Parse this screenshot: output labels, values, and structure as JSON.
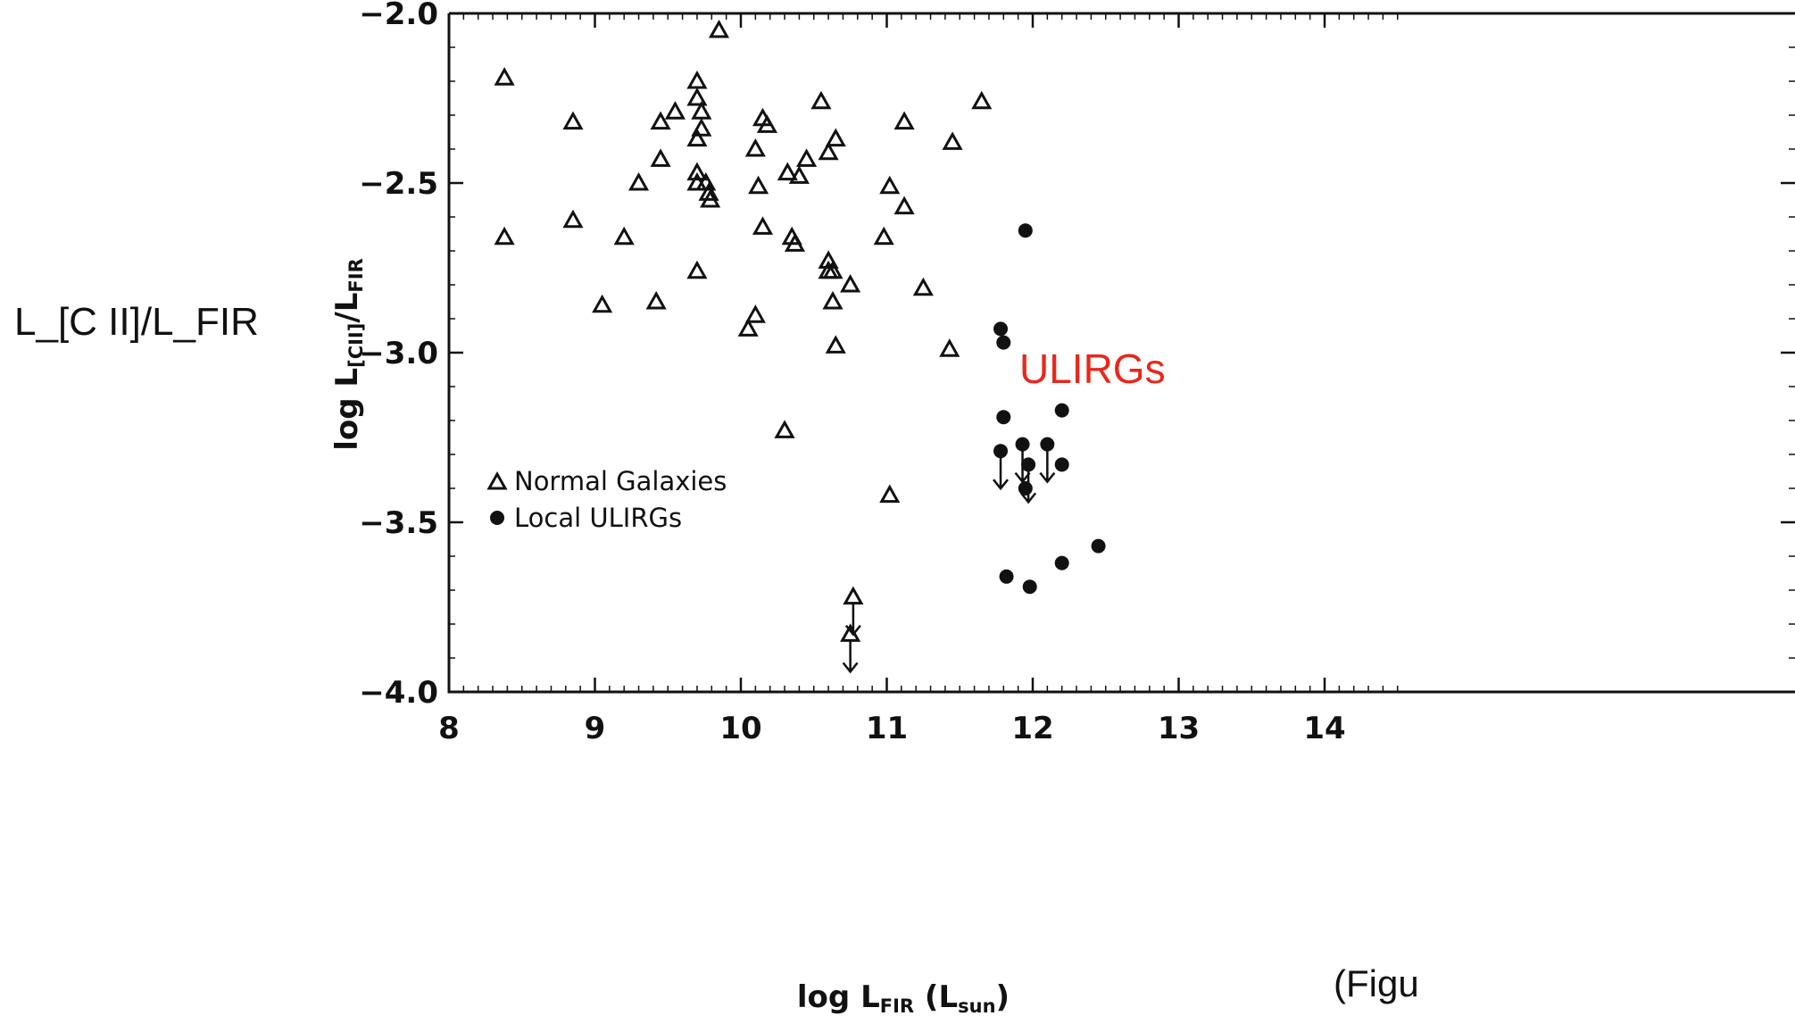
{
  "side_label": "L_[C II]/L_FIR",
  "annotation": "ULIRGs",
  "annotation_color": "#e8281c",
  "caption": "(Figu",
  "chart_data": {
    "type": "scatter",
    "x_axis": {
      "label_main": "log L",
      "label_sub": "FIR",
      "label_unit_open": " (L",
      "label_unit_sub": "sun",
      "label_close": ")",
      "range": [
        8.0,
        14.5
      ],
      "ticks": [
        8,
        9,
        10,
        11,
        12,
        13,
        14
      ],
      "tick_labels": [
        "8",
        "9",
        "10",
        "11",
        "12",
        "13",
        "14"
      ]
    },
    "y_axis": {
      "label_main": "log L",
      "label_sub": "[CII]",
      "label_mid": "/L",
      "label_sub2": "FIR",
      "range": [
        -4.0,
        -2.0
      ],
      "ticks": [
        -2.0,
        -2.5,
        -3.0,
        -3.5,
        -4.0
      ],
      "tick_labels": [
        "−2.0",
        "−2.5",
        "−3.0",
        "−3.5",
        "−4.0"
      ]
    },
    "legend": {
      "position": "lower-left",
      "entries": [
        {
          "label": "Normal Galaxies",
          "marker": "open-triangle"
        },
        {
          "label": "Local ULIRGs",
          "marker": "filled-circle"
        }
      ]
    },
    "series": [
      {
        "name": "Normal Galaxies",
        "marker": "open-triangle",
        "points": [
          [
            8.38,
            -2.19
          ],
          [
            8.38,
            -2.66
          ],
          [
            8.85,
            -2.32
          ],
          [
            8.85,
            -2.61
          ],
          [
            9.05,
            -2.86
          ],
          [
            9.2,
            -2.66
          ],
          [
            9.3,
            -2.5
          ],
          [
            9.42,
            -2.85
          ],
          [
            9.45,
            -2.43
          ],
          [
            9.45,
            -2.32
          ],
          [
            9.55,
            -2.29
          ],
          [
            9.7,
            -2.2
          ],
          [
            9.7,
            -2.25
          ],
          [
            9.73,
            -2.29
          ],
          [
            9.73,
            -2.34
          ],
          [
            9.7,
            -2.37
          ],
          [
            9.7,
            -2.47
          ],
          [
            9.7,
            -2.5
          ],
          [
            9.76,
            -2.5
          ],
          [
            9.78,
            -2.53
          ],
          [
            9.79,
            -2.55
          ],
          [
            9.7,
            -2.76
          ],
          [
            9.85,
            -2.05
          ],
          [
            10.05,
            -2.93
          ],
          [
            10.1,
            -2.89
          ],
          [
            10.1,
            -2.4
          ],
          [
            10.12,
            -2.51
          ],
          [
            10.15,
            -2.31
          ],
          [
            10.18,
            -2.33
          ],
          [
            10.15,
            -2.63
          ],
          [
            10.3,
            -3.23
          ],
          [
            10.32,
            -2.47
          ],
          [
            10.35,
            -2.66
          ],
          [
            10.37,
            -2.68
          ],
          [
            10.4,
            -2.48
          ],
          [
            10.45,
            -2.43
          ],
          [
            10.55,
            -2.26
          ],
          [
            10.6,
            -2.41
          ],
          [
            10.6,
            -2.73
          ],
          [
            10.6,
            -2.76
          ],
          [
            10.63,
            -2.76
          ],
          [
            10.63,
            -2.85
          ],
          [
            10.65,
            -2.98
          ],
          [
            10.65,
            -2.37
          ],
          [
            10.75,
            -2.8
          ],
          [
            10.98,
            -2.66
          ],
          [
            11.02,
            -2.51
          ],
          [
            11.02,
            -3.42
          ],
          [
            11.12,
            -2.32
          ],
          [
            11.12,
            -2.57
          ],
          [
            11.25,
            -2.81
          ],
          [
            11.43,
            -2.99
          ],
          [
            11.45,
            -2.38
          ],
          [
            11.65,
            -2.26
          ]
        ],
        "upper_limits": [
          [
            10.77,
            -3.72
          ],
          [
            10.75,
            -3.83
          ]
        ]
      },
      {
        "name": "Local ULIRGs",
        "marker": "filled-circle",
        "points": [
          [
            11.95,
            -2.64
          ],
          [
            11.78,
            -2.93
          ],
          [
            11.8,
            -2.97
          ],
          [
            11.8,
            -3.19
          ],
          [
            12.2,
            -3.17
          ],
          [
            11.95,
            -3.4
          ],
          [
            12.2,
            -3.33
          ],
          [
            11.82,
            -3.66
          ],
          [
            11.98,
            -3.69
          ],
          [
            12.2,
            -3.62
          ],
          [
            12.45,
            -3.57
          ]
        ],
        "upper_limits": [
          [
            11.78,
            -3.29
          ],
          [
            11.93,
            -3.27
          ],
          [
            11.97,
            -3.33
          ],
          [
            12.1,
            -3.27
          ]
        ]
      }
    ]
  }
}
